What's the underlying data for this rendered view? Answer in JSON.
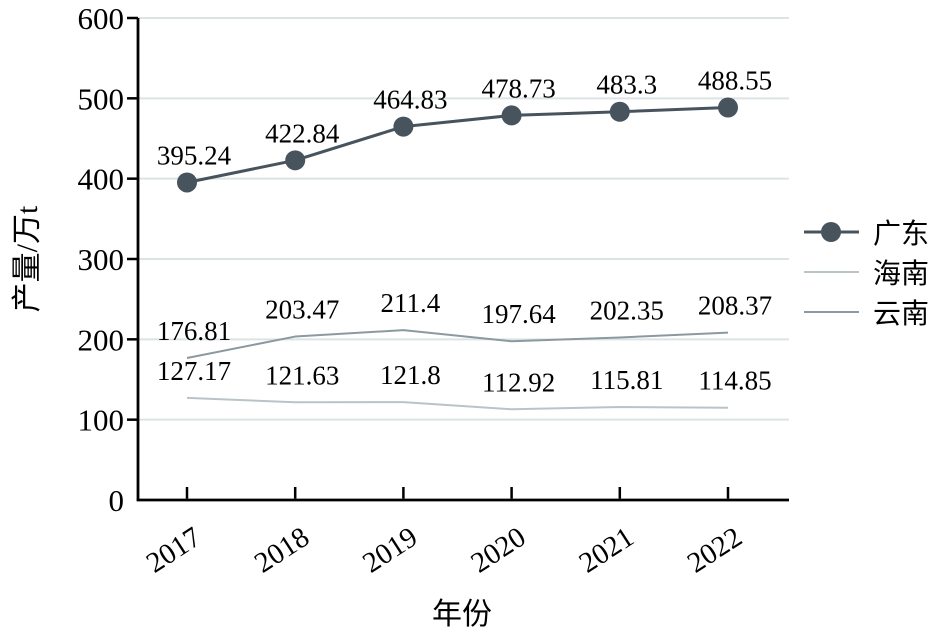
{
  "chart_data": {
    "type": "line",
    "x": [
      "2017",
      "2018",
      "2019",
      "2020",
      "2021",
      "2022"
    ],
    "series": [
      {
        "id": "guangdong",
        "name": "广东",
        "values": [
          395.24,
          422.84,
          464.83,
          478.73,
          483.3,
          488.55
        ],
        "labels": [
          "395.24",
          "422.84",
          "464.83",
          "478.73",
          "483.3",
          "488.55"
        ],
        "color": "#47545E",
        "marker": "circle",
        "marker_radius": 10,
        "line_width": 3
      },
      {
        "id": "hainan",
        "name": "海南",
        "values": [
          127.17,
          121.63,
          121.8,
          112.92,
          115.81,
          114.85
        ],
        "labels": [
          "127.17",
          "121.63",
          "121.8",
          "112.92",
          "115.81",
          "114.85"
        ],
        "color": "#B9C4C8",
        "marker": "none",
        "line_width": 2
      },
      {
        "id": "yunnan",
        "name": "云南",
        "values": [
          176.81,
          203.47,
          211.4,
          197.64,
          202.35,
          208.37
        ],
        "labels": [
          "176.81",
          "203.47",
          "211.4",
          "197.64",
          "202.35",
          "208.37"
        ],
        "color": "#8C99A0",
        "marker": "none",
        "line_width": 2
      }
    ],
    "title": "",
    "xlabel": "年份",
    "ylabel": "产量/万t",
    "ylim": [
      0,
      600
    ],
    "yticks": [
      0,
      100,
      200,
      300,
      400,
      500,
      600
    ],
    "grid": true,
    "grid_color": "#DCE3E5",
    "axis_color": "#000000",
    "legend_position": "right",
    "legend": [
      "广东",
      "海南",
      "云南"
    ],
    "data_labels": true
  }
}
